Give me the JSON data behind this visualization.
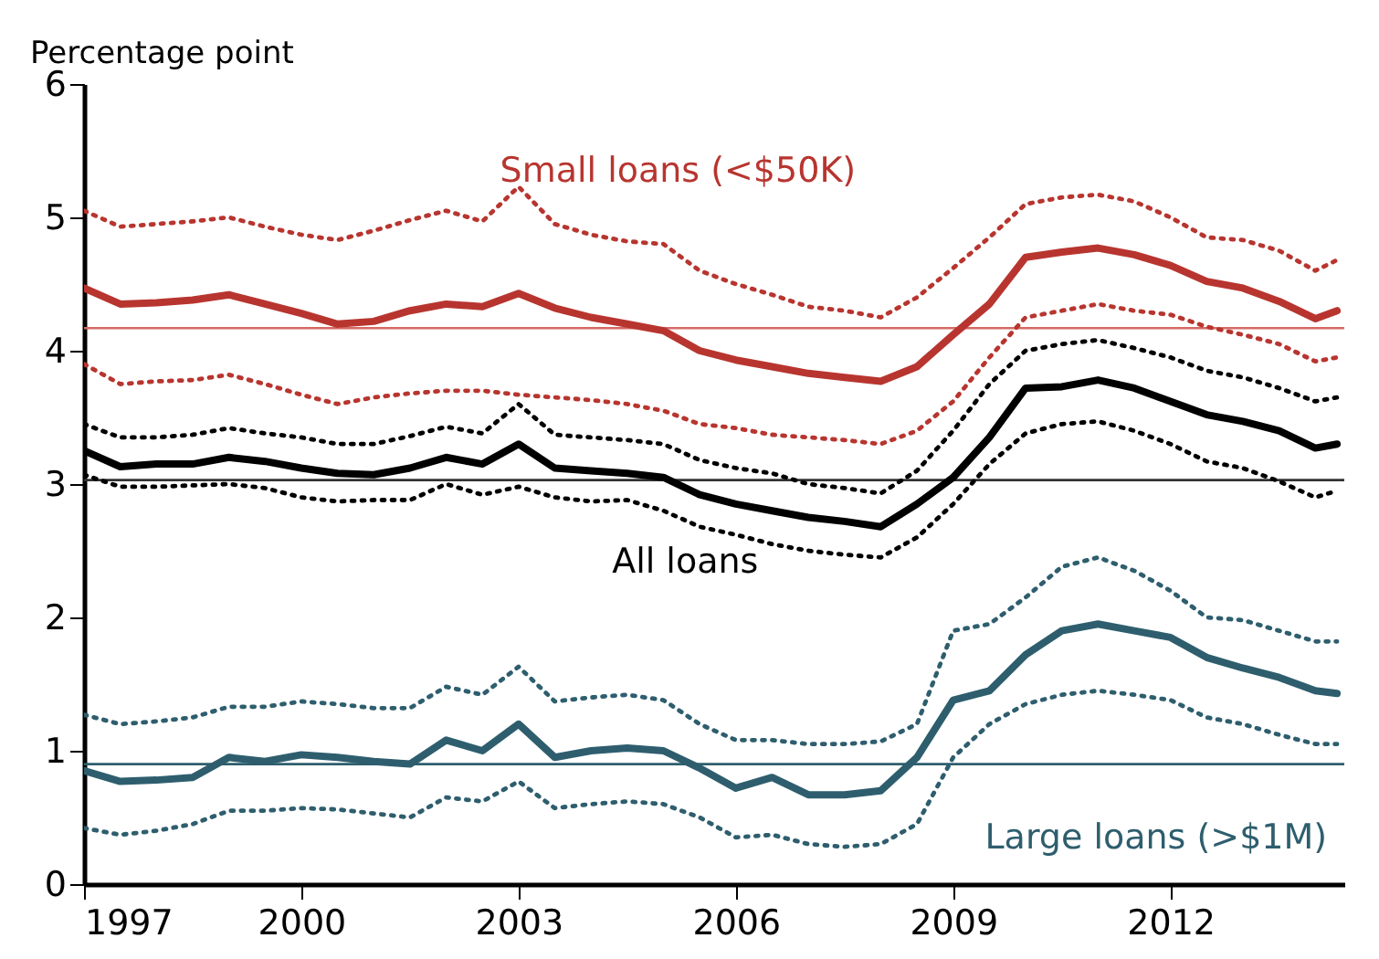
{
  "chart_data": {
    "type": "line",
    "ylabel": "Percentage point",
    "x": [
      1997,
      1997.5,
      1998,
      1998.5,
      1999,
      1999.5,
      2000,
      2000.5,
      2001,
      2001.5,
      2002,
      2002.5,
      2003,
      2003.5,
      2004,
      2004.5,
      2005,
      2005.5,
      2006,
      2006.5,
      2007,
      2007.5,
      2008,
      2008.5,
      2009,
      2009.5,
      2010,
      2010.5,
      2011,
      2011.5,
      2012,
      2012.5,
      2013,
      2013.5,
      2014,
      2014.3
    ],
    "xlim": [
      1997,
      2014.4
    ],
    "xticks": [
      1997,
      2000,
      2003,
      2006,
      2009,
      2012
    ],
    "ylim": [
      0,
      6
    ],
    "yticks": [
      0,
      1,
      2,
      3,
      4,
      5,
      6
    ],
    "series": [
      {
        "name": "Small loans (<$50K)",
        "color": "#b8352f",
        "line_style": "solid",
        "values": [
          4.47,
          4.35,
          4.36,
          4.38,
          4.42,
          4.35,
          4.28,
          4.2,
          4.22,
          4.3,
          4.35,
          4.33,
          4.43,
          4.32,
          4.25,
          4.2,
          4.15,
          4.0,
          3.93,
          3.88,
          3.83,
          3.8,
          3.77,
          3.88,
          4.12,
          4.35,
          4.7,
          4.74,
          4.77,
          4.72,
          4.64,
          4.52,
          4.47,
          4.37,
          4.24,
          4.3
        ]
      },
      {
        "color": "#b8352f",
        "line_style": "dotted",
        "values": [
          5.05,
          4.93,
          4.95,
          4.97,
          5.0,
          4.93,
          4.87,
          4.83,
          4.9,
          4.98,
          5.05,
          4.97,
          5.23,
          4.95,
          4.87,
          4.82,
          4.8,
          4.6,
          4.5,
          4.42,
          4.33,
          4.3,
          4.25,
          4.4,
          4.62,
          4.85,
          5.1,
          5.15,
          5.17,
          5.12,
          5.0,
          4.85,
          4.83,
          4.75,
          4.6,
          4.68
        ]
      },
      {
        "color": "#b8352f",
        "line_style": "dotted",
        "values": [
          3.9,
          3.75,
          3.77,
          3.78,
          3.82,
          3.75,
          3.67,
          3.6,
          3.65,
          3.68,
          3.7,
          3.7,
          3.67,
          3.65,
          3.63,
          3.6,
          3.55,
          3.45,
          3.42,
          3.37,
          3.35,
          3.33,
          3.3,
          3.4,
          3.62,
          3.95,
          4.25,
          4.3,
          4.35,
          4.3,
          4.27,
          4.18,
          4.12,
          4.05,
          3.92,
          3.95
        ]
      },
      {
        "name": "All loans",
        "color": "#000000",
        "line_style": "solid",
        "values": [
          3.25,
          3.13,
          3.15,
          3.15,
          3.2,
          3.17,
          3.12,
          3.08,
          3.07,
          3.12,
          3.2,
          3.15,
          3.3,
          3.12,
          3.1,
          3.08,
          3.05,
          2.92,
          2.85,
          2.8,
          2.75,
          2.72,
          2.68,
          2.85,
          3.05,
          3.35,
          3.72,
          3.73,
          3.78,
          3.72,
          3.62,
          3.52,
          3.47,
          3.4,
          3.27,
          3.3
        ]
      },
      {
        "color": "#000000",
        "line_style": "dotted",
        "values": [
          3.45,
          3.35,
          3.35,
          3.37,
          3.42,
          3.38,
          3.35,
          3.3,
          3.3,
          3.36,
          3.43,
          3.38,
          3.6,
          3.37,
          3.35,
          3.33,
          3.3,
          3.18,
          3.12,
          3.08,
          3.0,
          2.97,
          2.93,
          3.1,
          3.4,
          3.75,
          4.0,
          4.05,
          4.08,
          4.02,
          3.95,
          3.85,
          3.8,
          3.72,
          3.62,
          3.65
        ]
      },
      {
        "color": "#000000",
        "line_style": "dotted",
        "values": [
          3.07,
          2.98,
          2.98,
          2.99,
          3.0,
          2.97,
          2.9,
          2.87,
          2.88,
          2.88,
          3.0,
          2.92,
          2.98,
          2.9,
          2.87,
          2.88,
          2.8,
          2.68,
          2.62,
          2.55,
          2.5,
          2.47,
          2.45,
          2.6,
          2.85,
          3.15,
          3.38,
          3.45,
          3.47,
          3.4,
          3.3,
          3.17,
          3.12,
          3.02,
          2.9,
          2.95
        ]
      },
      {
        "name": "Large loans (>$1M)",
        "color": "#2e5e6e",
        "line_style": "solid",
        "values": [
          0.85,
          0.77,
          0.78,
          0.8,
          0.95,
          0.92,
          0.97,
          0.95,
          0.92,
          0.9,
          1.08,
          1.0,
          1.2,
          0.95,
          1.0,
          1.02,
          1.0,
          0.87,
          0.72,
          0.8,
          0.67,
          0.67,
          0.7,
          0.95,
          1.38,
          1.45,
          1.72,
          1.9,
          1.95,
          1.9,
          1.85,
          1.7,
          1.62,
          1.55,
          1.45,
          1.43
        ]
      },
      {
        "color": "#2e5e6e",
        "line_style": "dotted",
        "values": [
          1.27,
          1.2,
          1.22,
          1.25,
          1.33,
          1.33,
          1.37,
          1.35,
          1.32,
          1.32,
          1.48,
          1.42,
          1.63,
          1.37,
          1.4,
          1.42,
          1.38,
          1.2,
          1.08,
          1.08,
          1.05,
          1.05,
          1.07,
          1.2,
          1.9,
          1.95,
          2.15,
          2.38,
          2.45,
          2.35,
          2.2,
          2.0,
          1.98,
          1.9,
          1.82,
          1.82
        ]
      },
      {
        "color": "#2e5e6e",
        "line_style": "dotted",
        "values": [
          0.42,
          0.37,
          0.4,
          0.45,
          0.55,
          0.55,
          0.57,
          0.56,
          0.53,
          0.5,
          0.65,
          0.62,
          0.77,
          0.57,
          0.6,
          0.62,
          0.6,
          0.5,
          0.35,
          0.37,
          0.3,
          0.28,
          0.3,
          0.45,
          0.95,
          1.2,
          1.35,
          1.42,
          1.45,
          1.42,
          1.38,
          1.25,
          1.2,
          1.12,
          1.05,
          1.05
        ]
      }
    ],
    "ref_lines": [
      {
        "axis": "y",
        "value": 4.17,
        "color": "#d46a64"
      },
      {
        "axis": "y",
        "value": 3.03,
        "color": "#333333"
      },
      {
        "axis": "y",
        "value": 0.9,
        "color": "#2e5e6e"
      }
    ]
  }
}
